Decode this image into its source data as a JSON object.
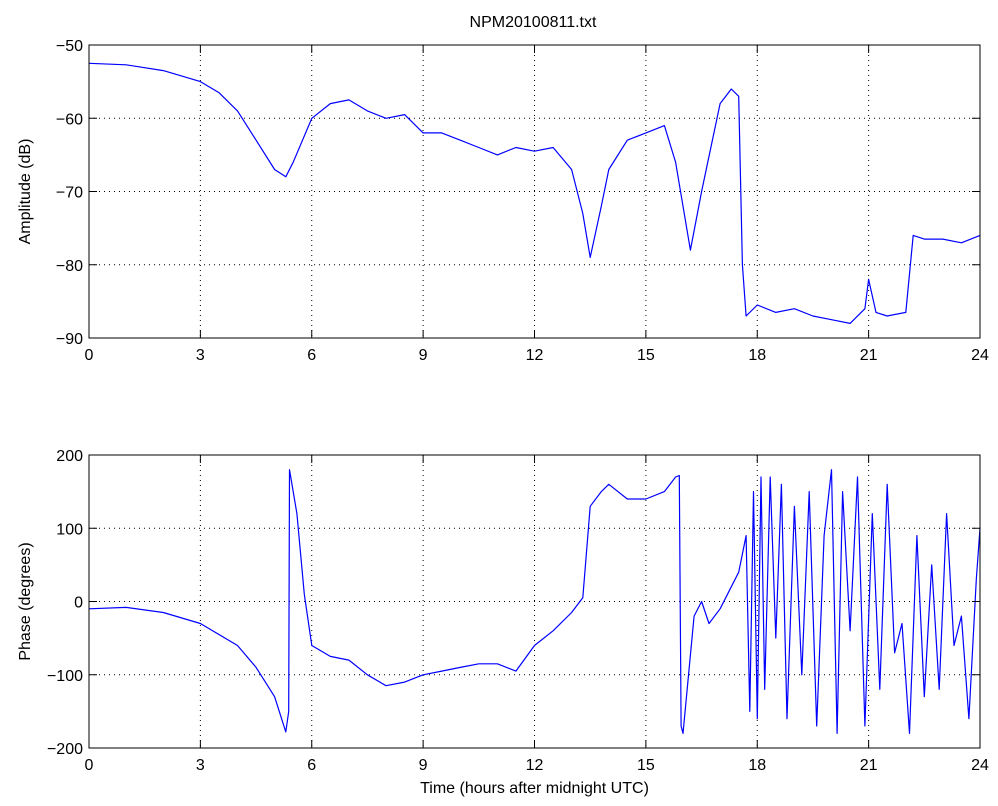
{
  "title": "NPM20100811.txt",
  "chart_data": [
    {
      "type": "line",
      "title": "NPM20100811.txt",
      "xlabel": "",
      "ylabel": "Amplitude (dB)",
      "xlim": [
        0,
        24
      ],
      "ylim": [
        -90,
        -50
      ],
      "xticks": [
        0,
        3,
        6,
        9,
        12,
        15,
        18,
        21,
        24
      ],
      "yticks": [
        -90,
        -80,
        -70,
        -60,
        -50
      ],
      "grid": true,
      "line_color": "#0000ff",
      "x": [
        0,
        1,
        2,
        3,
        3.5,
        4,
        4.5,
        5,
        5.3,
        5.5,
        6,
        6.5,
        7,
        7.5,
        8,
        8.5,
        9,
        9.5,
        10,
        10.5,
        11,
        11.5,
        12,
        12.5,
        13,
        13.3,
        13.5,
        13.8,
        14,
        14.5,
        15,
        15.5,
        15.8,
        16,
        16.2,
        16.5,
        17,
        17.3,
        17.5,
        17.6,
        17.7,
        18,
        18.5,
        19,
        19.5,
        20,
        20.5,
        20.9,
        21,
        21.2,
        21.5,
        22,
        22.2,
        22.5,
        23,
        23.5,
        24
      ],
      "y": [
        -52.5,
        -52.7,
        -53.5,
        -55,
        -56.5,
        -59,
        -63,
        -67,
        -68,
        -66,
        -60,
        -58,
        -57.5,
        -59,
        -60,
        -59.5,
        -62,
        -62,
        -63,
        -64,
        -65,
        -64,
        -64.5,
        -64,
        -67,
        -73,
        -79,
        -72,
        -67,
        -63,
        -62,
        -61,
        -66,
        -72,
        -78,
        -70,
        -58,
        -56,
        -57,
        -80,
        -87,
        -85.5,
        -86.5,
        -86,
        -87,
        -87.5,
        -88,
        -86,
        -82,
        -86.5,
        -87,
        -86.5,
        -76,
        -76.5,
        -76.5,
        -77,
        -76
      ]
    },
    {
      "type": "line",
      "title": "",
      "xlabel": "Time (hours after midnight UTC)",
      "ylabel": "Phase (degrees)",
      "xlim": [
        0,
        24
      ],
      "ylim": [
        -200,
        200
      ],
      "xticks": [
        0,
        3,
        6,
        9,
        12,
        15,
        18,
        21,
        24
      ],
      "yticks": [
        -200,
        -100,
        0,
        100,
        200
      ],
      "grid": true,
      "line_color": "#0000ff",
      "x": [
        0,
        1,
        2,
        3,
        4,
        4.5,
        5,
        5.3,
        5.38,
        5.4,
        5.6,
        5.8,
        6,
        6.5,
        7,
        7.5,
        8,
        8.5,
        9,
        9.5,
        10,
        10.5,
        11,
        11.5,
        12,
        12.5,
        13,
        13.3,
        13.5,
        13.8,
        14,
        14.5,
        15,
        15.5,
        15.8,
        15.9,
        15.95,
        16,
        16.3,
        16.5,
        16.7,
        17,
        17.5,
        17.7,
        17.8,
        17.9,
        18,
        18.1,
        18.2,
        18.35,
        18.5,
        18.65,
        18.8,
        19,
        19.2,
        19.4,
        19.6,
        19.8,
        20,
        20.15,
        20.3,
        20.5,
        20.7,
        20.9,
        21.1,
        21.3,
        21.5,
        21.7,
        21.9,
        22.1,
        22.3,
        22.5,
        22.7,
        22.9,
        23.1,
        23.3,
        23.5,
        23.7,
        23.9,
        24
      ],
      "y": [
        -10,
        -8,
        -15,
        -30,
        -60,
        -90,
        -130,
        -178,
        -150,
        180,
        120,
        10,
        -60,
        -75,
        -80,
        -100,
        -115,
        -110,
        -100,
        -95,
        -90,
        -85,
        -85,
        -95,
        -60,
        -40,
        -15,
        5,
        130,
        150,
        160,
        140,
        140,
        150,
        170,
        172,
        -170,
        -180,
        -20,
        0,
        -30,
        -10,
        40,
        90,
        -150,
        150,
        -160,
        170,
        -120,
        170,
        -50,
        160,
        -160,
        130,
        -100,
        150,
        -170,
        90,
        180,
        -180,
        150,
        -40,
        170,
        -170,
        120,
        -120,
        160,
        -70,
        -30,
        -180,
        90,
        -130,
        50,
        -120,
        120,
        -60,
        -20,
        -160,
        30,
        100
      ]
    }
  ]
}
